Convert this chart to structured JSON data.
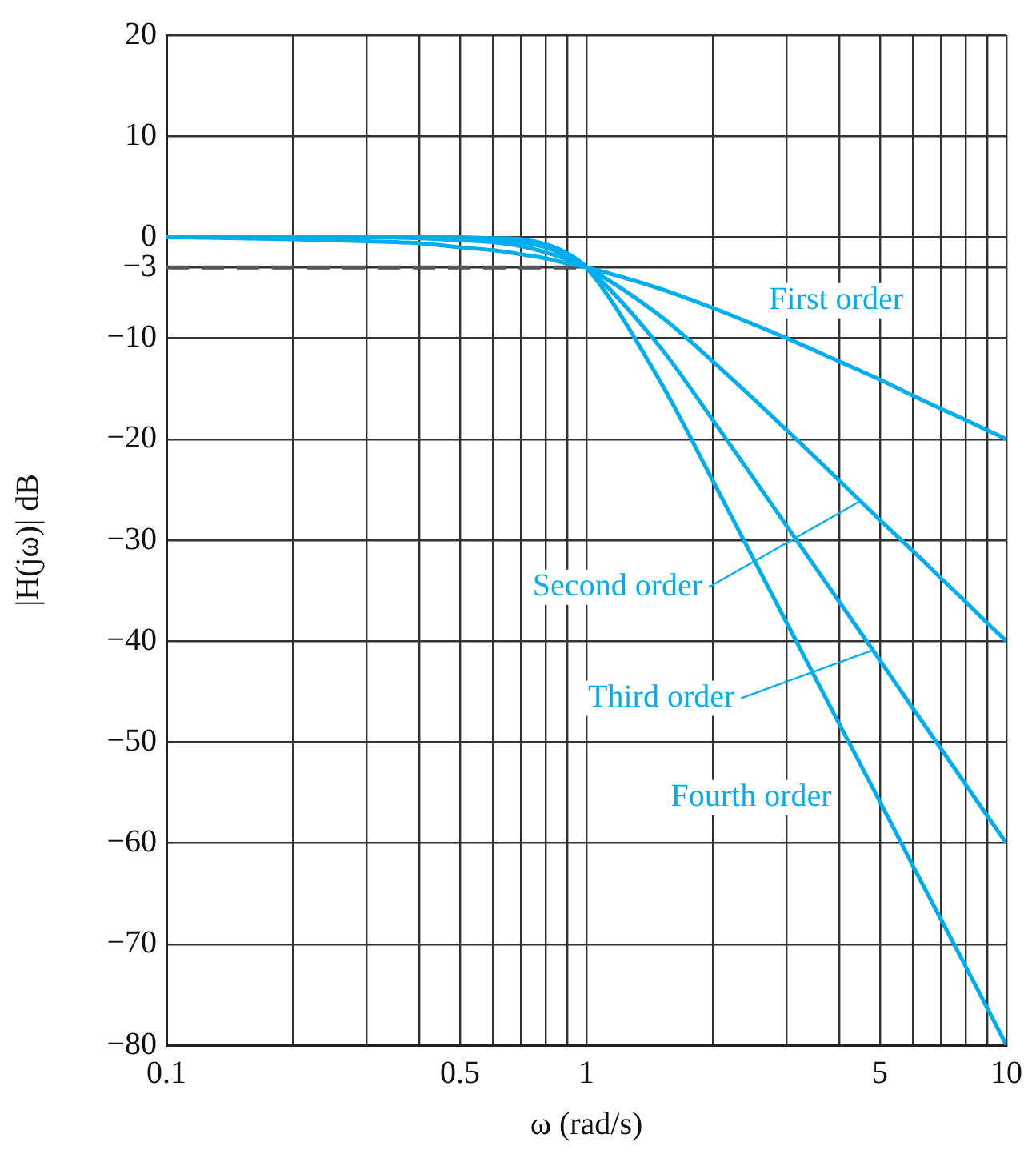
{
  "chart_data": {
    "type": "line",
    "xlabel": "ω (rad/s)",
    "ylabel": "|H(jω)| dB",
    "log": "x",
    "xlim": [
      0.1,
      10
    ],
    "ylim": [
      -80,
      20
    ],
    "xticks": [
      0.1,
      {
        "value": 0.2,
        "label": null
      },
      {
        "value": 0.3,
        "label": null
      },
      {
        "value": 0.4,
        "label": null
      },
      0.5,
      {
        "value": 0.6,
        "label": null
      },
      {
        "value": 0.7,
        "label": null
      },
      {
        "value": 0.8,
        "label": null
      },
      {
        "value": 0.9,
        "label": null
      },
      1,
      {
        "value": 2,
        "label": null
      },
      {
        "value": 3,
        "label": null
      },
      {
        "value": 4,
        "label": null
      },
      5,
      {
        "value": 6,
        "label": null
      },
      {
        "value": 7,
        "label": null
      },
      {
        "value": 8,
        "label": null
      },
      {
        "value": 9,
        "label": null
      },
      10
    ],
    "yticks": [
      20,
      10,
      0,
      {
        "value": -3,
        "label": "−3"
      },
      {
        "value": -10,
        "label": "−10"
      },
      {
        "value": -20,
        "label": "−20"
      },
      {
        "value": -30,
        "label": "−30"
      },
      {
        "value": -40,
        "label": "−40"
      },
      {
        "value": -50,
        "label": "−50"
      },
      {
        "value": -60,
        "label": "−60"
      },
      {
        "value": -70,
        "label": "−70"
      },
      {
        "value": -80,
        "label": "−80"
      }
    ],
    "grid": true,
    "legend": false,
    "marker": "none",
    "x": [
      0.1,
      0.2,
      0.3,
      0.4,
      0.5,
      0.6,
      0.7,
      0.8,
      0.9,
      1,
      1.5,
      2,
      3,
      4,
      5,
      6,
      7,
      8,
      9,
      10
    ],
    "series": [
      {
        "color": "#00aeef",
        "line_style": "solid",
        "values": [
          0,
          -0.2,
          -0.4,
          -0.6,
          -1,
          -1.3,
          -1.7,
          -2.1,
          -2.6,
          -3,
          -5.1,
          -7,
          -10,
          -12.3,
          -14.1,
          -15.7,
          -17,
          -18.1,
          -19.1,
          -20
        ]
      },
      {
        "color": "#00aeef",
        "line_style": "solid",
        "values": [
          0,
          0,
          0,
          -0.1,
          -0.3,
          -0.5,
          -0.9,
          -1.5,
          -2.2,
          -3,
          -7.8,
          -12.3,
          -19.1,
          -24.1,
          -28,
          -31.1,
          -33.8,
          -36.1,
          -38.2,
          -40
        ]
      },
      {
        "color": "#00aeef",
        "line_style": "solid",
        "values": [
          0,
          0,
          0,
          0,
          -0.1,
          -0.2,
          -0.5,
          -1,
          -1.9,
          -3,
          -10.9,
          -18.1,
          -28.6,
          -36.1,
          -41.9,
          -46.7,
          -50.7,
          -54.2,
          -57.3,
          -60
        ]
      },
      {
        "color": "#00aeef",
        "line_style": "solid",
        "values": [
          0,
          0,
          0,
          0,
          0,
          -0.1,
          -0.2,
          -0.7,
          -1.6,
          -3,
          -14.3,
          -24.1,
          -38.2,
          -48.2,
          -55.9,
          -62.3,
          -67.6,
          -72.2,
          -76.3,
          -80
        ]
      },
      {
        "color": "#555555",
        "line_style": "dashed",
        "x": [
          0.1,
          1
        ],
        "values": [
          -3,
          -3
        ]
      }
    ],
    "annotations": [
      {
        "text": "First order",
        "x": 4,
        "y": -12.3
      },
      {
        "text": "Second order",
        "x": 4.5,
        "y": -26.1
      },
      {
        "text": "Third order",
        "x": 4.8,
        "y": -40.9
      },
      {
        "text": "Fourth order",
        "x": 4,
        "y": -48.2
      }
    ]
  }
}
